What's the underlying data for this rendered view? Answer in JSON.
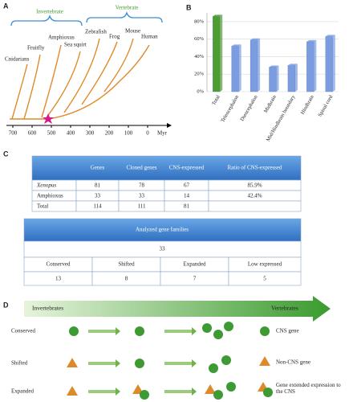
{
  "panels": [
    "A",
    "B",
    "C",
    "D"
  ],
  "tree": {
    "groups": [
      "Invertebrate",
      "Vertebrate"
    ],
    "taxa": [
      "Cnidarians",
      "Fruitfly",
      "Amphioxus",
      "Sea squirt",
      "Zebrafish",
      "Frog",
      "Mouse",
      "Human"
    ],
    "axis_ticks": [
      "700",
      "600",
      "500",
      "400",
      "300",
      "200",
      "100",
      "0"
    ],
    "axis_unit": "Myr"
  },
  "chart_data": {
    "type": "bar",
    "categories": [
      "Total",
      "Telencephalon",
      "Diencephalon",
      "Midbrain",
      "Mid/Hindbrain boundary",
      "Hindbrain",
      "Spinal cord"
    ],
    "values": [
      86,
      52,
      59,
      28,
      30,
      57,
      63
    ],
    "colors": [
      "#4e9d32",
      "#7b9de0",
      "#7b9de0",
      "#7b9de0",
      "#7b9de0",
      "#7b9de0",
      "#7b9de0"
    ],
    "ylim": [
      0,
      90
    ],
    "yticks": [
      {
        "value": 0,
        "label": "0%"
      },
      {
        "value": 20,
        "label": "20%"
      },
      {
        "value": 40,
        "label": "40%"
      },
      {
        "value": 60,
        "label": "60%"
      },
      {
        "value": 80,
        "label": "80%"
      }
    ],
    "grid": true
  },
  "gene_table": {
    "header": [
      "Genes",
      "Cloned genes",
      "CNS-expressed",
      "Ratio of CNS-expressed"
    ],
    "rows": [
      [
        "Xenopus",
        "81",
        "78",
        "67",
        "85.9%"
      ],
      [
        "Amphioxus",
        "33",
        "33",
        "14",
        "42.4%"
      ],
      [
        "Total",
        "114",
        "111",
        "81"
      ]
    ]
  },
  "families_table": {
    "title": "Analyzed gene families",
    "total": "33",
    "header": [
      "Conserved",
      "Shifted",
      "Expanded",
      "Low expressed"
    ],
    "values": [
      "13",
      "8",
      "7",
      "5"
    ]
  },
  "evolution": {
    "from": "Invertebrates",
    "to": "Vertebrates",
    "rows": [
      "Conserved",
      "Shifted",
      "Expanded"
    ],
    "legend": [
      "CNS gene",
      "Non-CNS gene",
      "Gene extended expression to the CNS"
    ]
  }
}
